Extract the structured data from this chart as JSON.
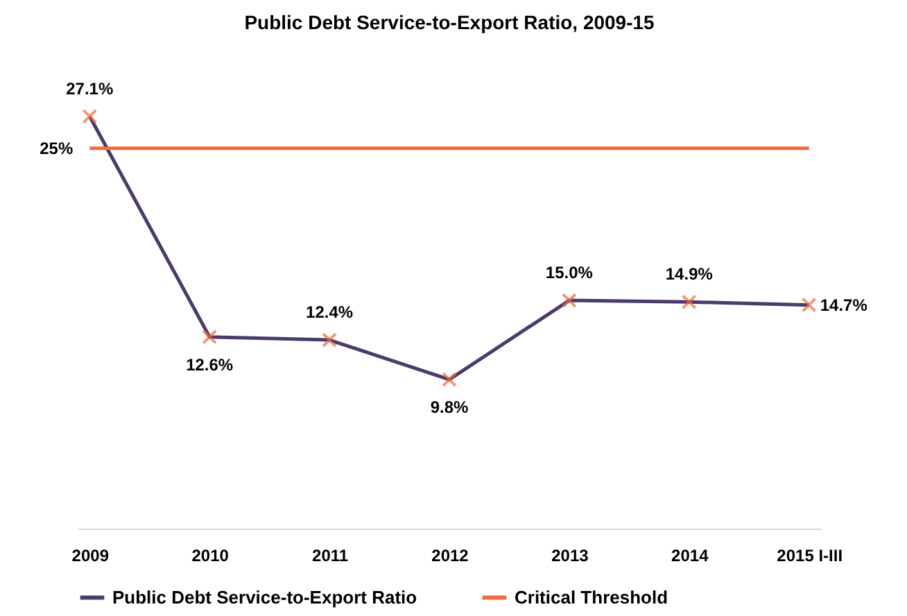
{
  "chart_data": {
    "type": "line",
    "title": "Public Debt Service-to-Export Ratio, 2009-15",
    "categories": [
      "2009",
      "2010",
      "2011",
      "2012",
      "2013",
      "2014",
      "2015 I-III"
    ],
    "series": [
      {
        "name": "Public Debt Service-to-Export Ratio",
        "color": "#4b3a6b",
        "colors": [
          "#f26b3a",
          "#f26b3a",
          "#f26b3a",
          "#f26b3a",
          "#f26b3a",
          "#f26b3a",
          "#f26b3a"
        ],
        "marker": "cross",
        "values": [
          27.1,
          12.6,
          12.4,
          9.8,
          15.0,
          14.9,
          14.7
        ],
        "value_labels": [
          "27.1%",
          "12.6%",
          "12.4%",
          "9.8%",
          "15.0%",
          "14.9%",
          "14.7%"
        ]
      },
      {
        "name": "Critical Threshold",
        "color": "#f26b3a",
        "values": [
          25,
          25,
          25,
          25,
          25,
          25,
          25
        ],
        "value_labels": [
          "25%",
          null,
          null,
          null,
          null,
          null,
          null
        ]
      }
    ],
    "tick_labels": "x",
    "grid": false,
    "legend": "bottom"
  }
}
